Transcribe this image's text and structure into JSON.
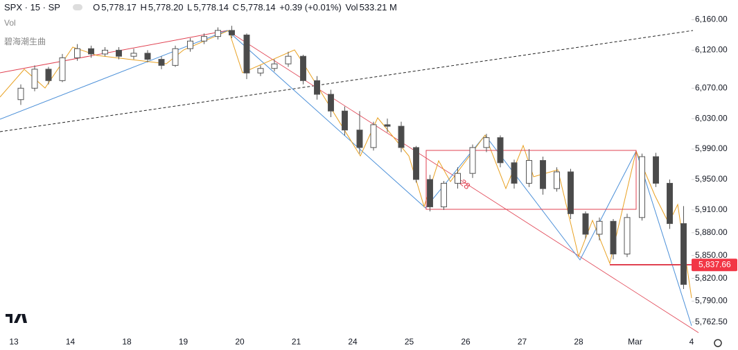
{
  "chart_data": {
    "type": "candlestick",
    "symbol": "SPX · 15 · SP",
    "ohlc_header": {
      "o_label": "O",
      "o": "5,778.17",
      "h_label": "H",
      "h": "5,778.20",
      "l_label": "L",
      "l": "5,778.14",
      "c_label": "C",
      "c": "5,778.14",
      "change": "+0.39 (+0.01%)",
      "vol_label": "Vol",
      "vol": "533.21 M"
    },
    "indicators": [
      "Vol",
      "碧海潮生曲"
    ],
    "annotation": "28",
    "categories": [
      "13",
      "14",
      "18",
      "19",
      "20",
      "21",
      "24",
      "25",
      "26",
      "27",
      "28",
      "Mar",
      "4"
    ],
    "open": [
      [
        6055,
        6070,
        6095,
        6080
      ],
      [
        6110,
        6122,
        6115,
        6120
      ],
      [
        6112,
        6116,
        6108,
        6100
      ],
      [
        6122,
        6132,
        6138,
        6146
      ],
      [
        6140,
        6090,
        6096,
        6102
      ],
      [
        6112,
        6080,
        6062,
        6040
      ],
      [
        6015,
        5992,
        6022,
        6020
      ],
      [
        5992,
        5950,
        5914,
        5945
      ],
      [
        5958,
        5992,
        6005,
        5972
      ],
      [
        5945,
        5975,
        5938,
        5960
      ],
      [
        5905,
        5878,
        5895,
        5852
      ],
      [
        5900,
        5980,
        5945,
        5892
      ],
      []
    ],
    "high": [
      [
        6075,
        6100,
        6098,
        6115
      ],
      [
        6128,
        6126,
        6124,
        6124
      ],
      [
        6122,
        6120,
        6112,
        6126
      ],
      [
        6136,
        6142,
        6150,
        6152
      ],
      [
        6142,
        6100,
        6108,
        6118
      ],
      [
        6114,
        6086,
        6068,
        6046
      ],
      [
        6040,
        6026,
        6030,
        6026
      ],
      [
        5994,
        5956,
        5948,
        5966
      ],
      [
        5996,
        6010,
        6008,
        5976
      ],
      [
        5990,
        5980,
        5966,
        5964
      ],
      [
        5908,
        5900,
        5898,
        5905
      ],
      [
        5984,
        5985,
        5950,
        5915
      ],
      []
    ],
    "low": [
      [
        6048,
        6066,
        6075,
        6078
      ],
      [
        6106,
        6110,
        6112,
        6108
      ],
      [
        6108,
        6104,
        6095,
        6098
      ],
      [
        6118,
        6128,
        6134,
        6136
      ],
      [
        6082,
        6086,
        6092,
        6098
      ],
      [
        6075,
        6055,
        6032,
        6008
      ],
      [
        5984,
        5988,
        6012,
        5986
      ],
      [
        5946,
        5908,
        5910,
        5938
      ],
      [
        5952,
        5986,
        5966,
        5938
      ],
      [
        5940,
        5930,
        5934,
        5898
      ],
      [
        5872,
        5870,
        5845,
        5848
      ],
      [
        5896,
        5940,
        5885,
        5806
      ],
      []
    ],
    "close": [
      [
        6070,
        6095,
        6080,
        6110
      ],
      [
        6122,
        6115,
        6120,
        6112
      ],
      [
        6116,
        6108,
        6100,
        6122
      ],
      [
        6132,
        6138,
        6146,
        6140
      ],
      [
        6090,
        6096,
        6102,
        6112
      ],
      [
        6080,
        6062,
        6040,
        6015
      ],
      [
        5992,
        6022,
        6020,
        5992
      ],
      [
        5950,
        5914,
        5945,
        5958
      ],
      [
        5992,
        6005,
        5972,
        5945
      ],
      [
        5975,
        5938,
        5960,
        5905
      ],
      [
        5878,
        5895,
        5852,
        5900
      ],
      [
        5980,
        5945,
        5892,
        5812
      ],
      []
    ],
    "up_color": "#ffffff",
    "down_color": "#4a4a4a",
    "wick_color": "#555555",
    "ylim": [
      5744,
      6186
    ],
    "yticks": [
      {
        "value": 5762.5,
        "label": "5,762.50"
      },
      {
        "value": 5790,
        "label": "5,790.00"
      },
      {
        "value": 5820,
        "label": "5,820.00"
      },
      {
        "value": 5850,
        "label": "5,850.00"
      },
      {
        "value": 5880,
        "label": "5,880.00"
      },
      {
        "value": 5910,
        "label": "5,910.00"
      },
      {
        "value": 5950,
        "label": "5,950.00"
      },
      {
        "value": 5990,
        "label": "5,990.00"
      },
      {
        "value": 6030,
        "label": "6,030.00"
      },
      {
        "value": 6070,
        "label": "6,070.00"
      },
      {
        "value": 6120,
        "label": "6,120.00"
      },
      {
        "value": 6160,
        "label": "6,160.00"
      }
    ],
    "last_price": {
      "value": 5837.66,
      "label": "5,837.66",
      "color": "#f23645"
    }
  }
}
